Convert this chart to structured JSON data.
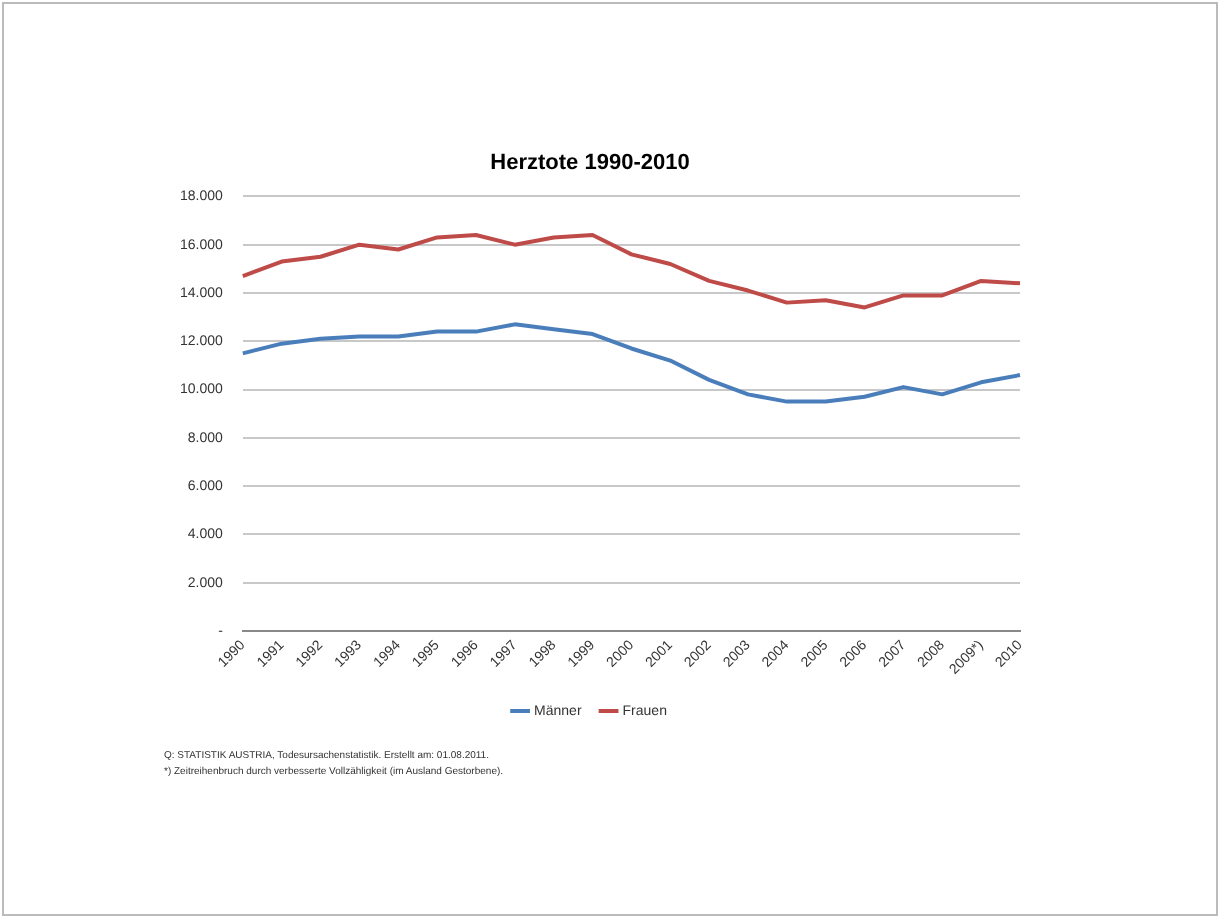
{
  "chart_data": {
    "type": "line",
    "title": "Herztote 1990-2010",
    "categories": [
      "1990",
      "1991",
      "1992",
      "1993",
      "1994",
      "1995",
      "1996",
      "1997",
      "1998",
      "1999",
      "2000",
      "2001",
      "2002",
      "2003",
      "2004",
      "2005",
      "2006",
      "2007",
      "2008",
      "2009*)",
      "2010"
    ],
    "series": [
      {
        "name": "Männer",
        "color": "#4a7ebb",
        "values": [
          11500,
          11900,
          12100,
          12200,
          12200,
          12400,
          12400,
          12700,
          12500,
          12300,
          11700,
          11200,
          10400,
          9800,
          9500,
          9500,
          9700,
          10100,
          9800,
          10300,
          10600
        ]
      },
      {
        "name": "Frauen",
        "color": "#be4b48",
        "values": [
          14700,
          15300,
          15500,
          16000,
          15800,
          16300,
          16400,
          16000,
          16300,
          16400,
          15600,
          15200,
          14500,
          14100,
          13600,
          13700,
          13400,
          13900,
          13900,
          14500,
          14400
        ]
      }
    ],
    "ylim": [
      0,
      18000
    ],
    "yticks": [
      {
        "value": 0,
        "label": "-"
      },
      {
        "value": 2000,
        "label": "2.000"
      },
      {
        "value": 4000,
        "label": "4.000"
      },
      {
        "value": 6000,
        "label": "6.000"
      },
      {
        "value": 8000,
        "label": "8.000"
      },
      {
        "value": 10000,
        "label": "10.000"
      },
      {
        "value": 12000,
        "label": "12.000"
      },
      {
        "value": 14000,
        "label": "14.000"
      },
      {
        "value": 16000,
        "label": "16.000"
      },
      {
        "value": 18000,
        "label": "18.000"
      }
    ],
    "grid": "y",
    "legend": "bottom",
    "marker": "none",
    "line_style": "solid",
    "annotations": [
      "Q: STATISTIK AUSTRIA, Todesursachenstatistik. Erstellt am: 01.08.2011.",
      "*) Zeitreihenbruch durch verbesserte Vollzähligkeit (im Ausland Gestorbene)."
    ]
  }
}
